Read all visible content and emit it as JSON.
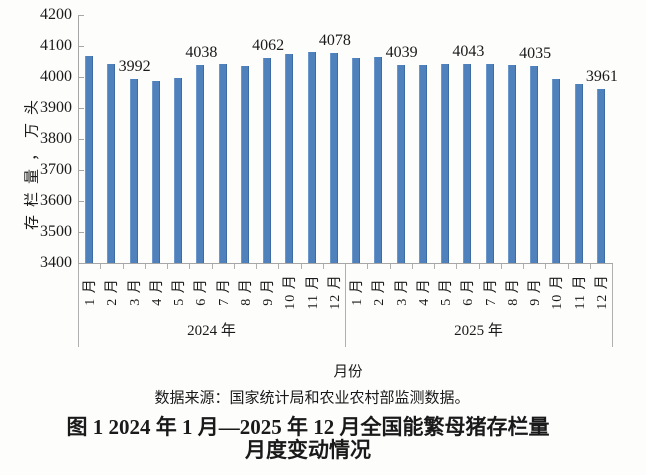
{
  "chart_data": {
    "type": "bar",
    "ylabel": "存栏量，万头",
    "xlabel": "月份",
    "ylim": [
      3400,
      4200
    ],
    "ytick_step": 100,
    "grid": false,
    "legend": false,
    "bar_color": "#4f81bd",
    "axis_color": "#a6a6a6",
    "text_color": "#1a1a1a",
    "groups": [
      {
        "year_label": "2024 年",
        "categories": [
          "1 月",
          "2 月",
          "3 月",
          "4 月",
          "5 月",
          "6 月",
          "7 月",
          "8 月",
          "9 月",
          "10 月",
          "11 月",
          "12 月"
        ],
        "values": [
          4067,
          4042,
          3992,
          3986,
          3996,
          4038,
          4041,
          4036,
          4062,
          4073,
          4080,
          4078
        ]
      },
      {
        "year_label": "2025 年",
        "categories": [
          "1 月",
          "2 月",
          "3 月",
          "4 月",
          "5 月",
          "6 月",
          "7 月",
          "8 月",
          "9 月",
          "10 月",
          "11 月",
          "12 月"
        ],
        "values": [
          4062,
          4066,
          4039,
          4038,
          4042,
          4043,
          4042,
          4038,
          4035,
          3993,
          3978,
          3961
        ]
      }
    ],
    "labeled_indices": [
      2,
      5,
      8,
      11,
      14,
      17,
      20,
      23
    ],
    "labeled_values": [
      3992,
      4038,
      4062,
      4078,
      4039,
      4043,
      4035,
      3961
    ]
  },
  "source_note": "数据来源：国家统计局和农业农村部监测数据。",
  "caption_line1": "图 1 2024 年 1 月—2025 年 12 月全国能繁母猪存栏量",
  "caption_line2": "月度变动情况"
}
